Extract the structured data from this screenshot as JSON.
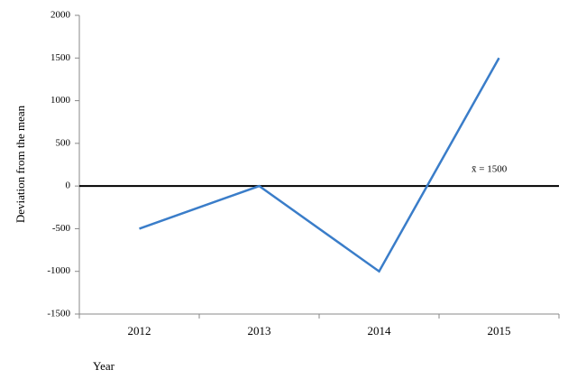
{
  "chart_data": {
    "type": "line",
    "x_label": "Year",
    "y_label": "Deviation from the mean",
    "annotation": "x̄ = 1500",
    "categories": [
      "2012",
      "2013",
      "2014",
      "2015"
    ],
    "series": [
      {
        "name": "Deviation",
        "color": "#3a7dc9",
        "values": [
          -500,
          0,
          -1000,
          1500
        ]
      }
    ],
    "ylim": [
      -1500,
      2000
    ],
    "yticks": [
      -1500,
      -1000,
      -500,
      0,
      500,
      1000,
      1500,
      2000
    ]
  }
}
